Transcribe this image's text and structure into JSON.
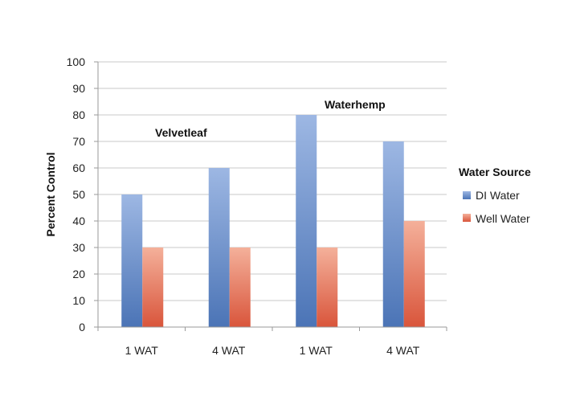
{
  "chart_data": {
    "type": "bar",
    "categories": [
      "1 WAT",
      "4 WAT",
      "1 WAT",
      "4 WAT"
    ],
    "group_labels": [
      "Velvetleaf",
      "Waterhemp"
    ],
    "series": [
      {
        "name": "DI Water",
        "values": [
          50,
          60,
          80,
          70
        ],
        "color": "#5b84c4"
      },
      {
        "name": "Well Water",
        "values": [
          30,
          30,
          30,
          40
        ],
        "color": "#e0664c"
      }
    ],
    "title": "",
    "xlabel": "",
    "ylabel": "Percent Control",
    "ylim": [
      0,
      100
    ],
    "yticks": [
      0,
      10,
      20,
      30,
      40,
      50,
      60,
      70,
      80,
      90,
      100
    ],
    "grid": true,
    "legend": {
      "title": "Water Source",
      "position": "right"
    }
  }
}
